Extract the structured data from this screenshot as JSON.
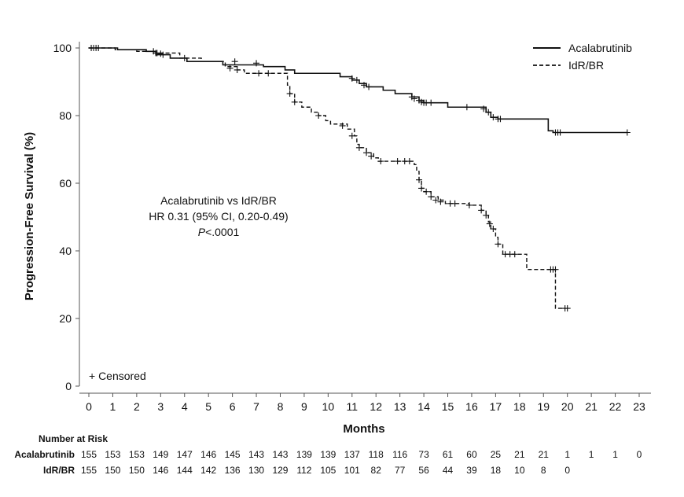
{
  "chart_data": {
    "type": "line",
    "subtype": "kaplan-meier",
    "title": "",
    "xlabel": "Months",
    "ylabel": "Progression-Free Survival (%)",
    "xlim": [
      0,
      23
    ],
    "ylim": [
      0,
      100
    ],
    "x_ticks": [
      0,
      1,
      2,
      3,
      4,
      5,
      6,
      7,
      8,
      9,
      10,
      11,
      12,
      13,
      14,
      15,
      16,
      17,
      18,
      19,
      20,
      21,
      22,
      23
    ],
    "y_ticks": [
      0,
      20,
      40,
      60,
      80,
      100
    ],
    "grid": false,
    "legend_position": "top-right",
    "series": [
      {
        "name": "Acalabrutinib",
        "line_style": "solid",
        "color": "#111111",
        "steps": [
          [
            0,
            100
          ],
          [
            1.2,
            99.5
          ],
          [
            2.4,
            99
          ],
          [
            2.8,
            98
          ],
          [
            3.4,
            97
          ],
          [
            4.1,
            96
          ],
          [
            5.6,
            95
          ],
          [
            7.3,
            94.5
          ],
          [
            8.2,
            93.5
          ],
          [
            8.6,
            92.5
          ],
          [
            10.5,
            91.5
          ],
          [
            11.0,
            90.5
          ],
          [
            11.3,
            89.5
          ],
          [
            11.6,
            88.5
          ],
          [
            12.3,
            87.5
          ],
          [
            12.8,
            86.5
          ],
          [
            13.5,
            85.5
          ],
          [
            13.8,
            84.5
          ],
          [
            14.0,
            83.8
          ],
          [
            15.0,
            82.5
          ],
          [
            16.6,
            81
          ],
          [
            16.8,
            79.5
          ],
          [
            17.1,
            79
          ],
          [
            19.2,
            75.5
          ],
          [
            19.4,
            75
          ],
          [
            22.5,
            75
          ]
        ],
        "censored": [
          [
            0.1,
            100
          ],
          [
            0.3,
            100
          ],
          [
            2.7,
            99
          ],
          [
            2.85,
            98.5
          ],
          [
            3.0,
            98.3
          ],
          [
            6.1,
            96
          ],
          [
            7.0,
            95.5
          ],
          [
            11.0,
            91
          ],
          [
            11.2,
            90.5
          ],
          [
            11.5,
            89
          ],
          [
            11.7,
            88.5
          ],
          [
            13.5,
            85.5
          ],
          [
            13.6,
            85
          ],
          [
            13.8,
            84.5
          ],
          [
            13.9,
            84
          ],
          [
            14.0,
            83.8
          ],
          [
            14.1,
            83.8
          ],
          [
            14.3,
            83.8
          ],
          [
            15.8,
            82.5
          ],
          [
            16.5,
            82
          ],
          [
            16.7,
            81
          ],
          [
            16.9,
            79.5
          ],
          [
            17.1,
            79
          ],
          [
            17.2,
            79
          ],
          [
            19.5,
            75
          ],
          [
            19.6,
            75
          ],
          [
            19.7,
            75
          ],
          [
            22.5,
            75
          ]
        ]
      },
      {
        "name": "IdR/BR",
        "line_style": "dashed",
        "color": "#111111",
        "steps": [
          [
            0,
            100
          ],
          [
            1.1,
            99.5
          ],
          [
            2.0,
            99
          ],
          [
            2.8,
            98.5
          ],
          [
            3.8,
            97
          ],
          [
            4.7,
            96
          ],
          [
            5.7,
            94.5
          ],
          [
            6.2,
            93.5
          ],
          [
            6.5,
            92.5
          ],
          [
            8.3,
            89
          ],
          [
            8.4,
            86.5
          ],
          [
            8.6,
            84
          ],
          [
            8.9,
            82.5
          ],
          [
            9.3,
            81
          ],
          [
            9.6,
            80
          ],
          [
            9.9,
            78.5
          ],
          [
            10.1,
            77.5
          ],
          [
            10.8,
            76
          ],
          [
            11.1,
            74
          ],
          [
            11.2,
            71.5
          ],
          [
            11.3,
            70.5
          ],
          [
            11.6,
            69
          ],
          [
            11.9,
            67.5
          ],
          [
            12.1,
            66.5
          ],
          [
            13.6,
            65.5
          ],
          [
            13.7,
            63.5
          ],
          [
            13.8,
            61
          ],
          [
            13.9,
            58.5
          ],
          [
            14.0,
            57.5
          ],
          [
            14.3,
            56
          ],
          [
            14.6,
            55
          ],
          [
            14.9,
            54
          ],
          [
            15.9,
            53.5
          ],
          [
            16.4,
            52
          ],
          [
            16.6,
            50.5
          ],
          [
            16.7,
            48.5
          ],
          [
            16.8,
            46.5
          ],
          [
            17.0,
            44
          ],
          [
            17.1,
            42
          ],
          [
            17.3,
            39
          ],
          [
            18.3,
            34.5
          ],
          [
            19.5,
            23
          ],
          [
            19.9,
            23
          ]
        ],
        "censored": [
          [
            0.2,
            100
          ],
          [
            0.4,
            100
          ],
          [
            2.8,
            98.5
          ],
          [
            3.1,
            98
          ],
          [
            4.0,
            97
          ],
          [
            5.9,
            94
          ],
          [
            6.2,
            93.5
          ],
          [
            7.1,
            92.5
          ],
          [
            7.5,
            92.5
          ],
          [
            8.4,
            86.5
          ],
          [
            8.6,
            84
          ],
          [
            9.6,
            80
          ],
          [
            10.6,
            77
          ],
          [
            11.0,
            74
          ],
          [
            11.3,
            70.5
          ],
          [
            11.6,
            69
          ],
          [
            11.8,
            68
          ],
          [
            12.2,
            66.5
          ],
          [
            12.9,
            66.5
          ],
          [
            13.2,
            66.5
          ],
          [
            13.4,
            66.5
          ],
          [
            13.8,
            61
          ],
          [
            13.9,
            58.5
          ],
          [
            14.1,
            57.5
          ],
          [
            14.3,
            56
          ],
          [
            14.5,
            55
          ],
          [
            14.7,
            54.5
          ],
          [
            15.1,
            54
          ],
          [
            15.3,
            54
          ],
          [
            15.9,
            53.5
          ],
          [
            16.4,
            52
          ],
          [
            16.6,
            50.5
          ],
          [
            16.75,
            48
          ],
          [
            16.9,
            46.5
          ],
          [
            17.1,
            42
          ],
          [
            17.4,
            39
          ],
          [
            17.6,
            39
          ],
          [
            17.8,
            39
          ],
          [
            19.3,
            34.5
          ],
          [
            19.4,
            34.5
          ],
          [
            19.5,
            34.5
          ],
          [
            19.9,
            23
          ],
          [
            20.0,
            23
          ]
        ]
      }
    ],
    "legend": [
      {
        "label": "Acalabrutinib",
        "line_style": "solid"
      },
      {
        "label": "IdR/BR",
        "line_style": "dashed"
      }
    ],
    "annotations": {
      "comparison": "Acalabrutinib vs IdR/BR",
      "hazard_ratio": "HR 0.31 (95% CI, 0.20-0.49)",
      "p_prefix": "P",
      "p_value": "<.0001",
      "censored_note": "+ Censored"
    },
    "number_at_risk": {
      "title": "Number at Risk",
      "rows": [
        {
          "label": "Acalabrutinib",
          "values": [
            "155",
            "153",
            "153",
            "149",
            "147",
            "146",
            "145",
            "143",
            "143",
            "139",
            "139",
            "137",
            "118",
            "116",
            "73",
            "61",
            "60",
            "25",
            "21",
            "21",
            "1",
            "1",
            "1",
            "0"
          ]
        },
        {
          "label": "IdR/BR",
          "values": [
            "155",
            "150",
            "150",
            "146",
            "144",
            "142",
            "136",
            "130",
            "129",
            "112",
            "105",
            "101",
            "82",
            "77",
            "56",
            "44",
            "39",
            "18",
            "10",
            "8",
            "0"
          ]
        }
      ]
    }
  }
}
